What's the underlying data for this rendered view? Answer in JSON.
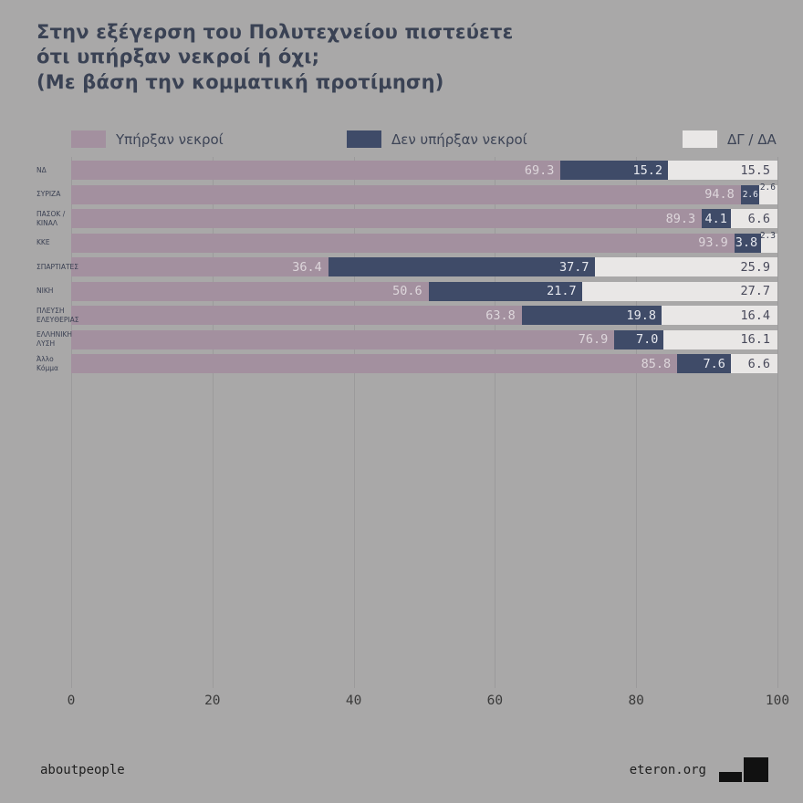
{
  "title": {
    "line1": "Στην εξέγερση του Πολυτεχνείου πιστεύετε",
    "line2": "ότι υπήρξαν νεκροί ή όχι;",
    "line3": "(Με βάση την κομματική προτίμηση)"
  },
  "legend": [
    {
      "label": "Υπήρξαν νεκροί",
      "color": "#a3909f"
    },
    {
      "label": "Δεν υπήρξαν νεκροί",
      "color": "#3f4b68"
    },
    {
      "label": "ΔΓ / ΔΑ",
      "color": "#e9e7e6"
    }
  ],
  "footer": {
    "left": "aboutpeople",
    "right": "eteron.org"
  },
  "chart_data": {
    "type": "bar",
    "orientation": "horizontal",
    "stacked": true,
    "title": "Στην εξέγερση του Πολυτεχνείου πιστεύετε ότι υπήρξαν νεκροί ή όχι; (Με βάση την κομματική προτίμηση)",
    "categories": [
      "ΝΔ",
      "ΣΥΡΙΖΑ",
      "ΠΑΣΟΚ /\nΚΙΝΑΛ",
      "ΚΚΕ",
      "ΣΠΑΡΤΙΑΤΕΣ",
      "ΝΙΚΗ",
      "ΠΛΕΥΣΗ\nΕΛΕΥΘΕΡΙΑΣ",
      "ΕΛΛΗΝΙΚΗ\nΛΥΣΗ",
      "Άλλο Κόμμα"
    ],
    "series": [
      {
        "name": "Υπήρξαν νεκροί",
        "color": "#a3909f",
        "values": [
          69.3,
          94.8,
          89.3,
          93.9,
          36.4,
          50.6,
          63.8,
          76.9,
          85.8
        ]
      },
      {
        "name": "Δεν υπήρξαν νεκροί",
        "color": "#3f4b68",
        "values": [
          15.2,
          2.6,
          4.1,
          3.8,
          37.7,
          21.7,
          19.8,
          7.0,
          7.6
        ]
      },
      {
        "name": "ΔΓ / ΔΑ",
        "color": "#e9e7e6",
        "values": [
          15.5,
          2.6,
          6.6,
          2.3,
          25.9,
          27.7,
          16.4,
          16.1,
          6.6
        ]
      }
    ],
    "x_ticks": [
      0,
      20,
      40,
      60,
      80,
      100
    ],
    "xlim": [
      0,
      100
    ],
    "grid": true,
    "legend_position": "top"
  }
}
